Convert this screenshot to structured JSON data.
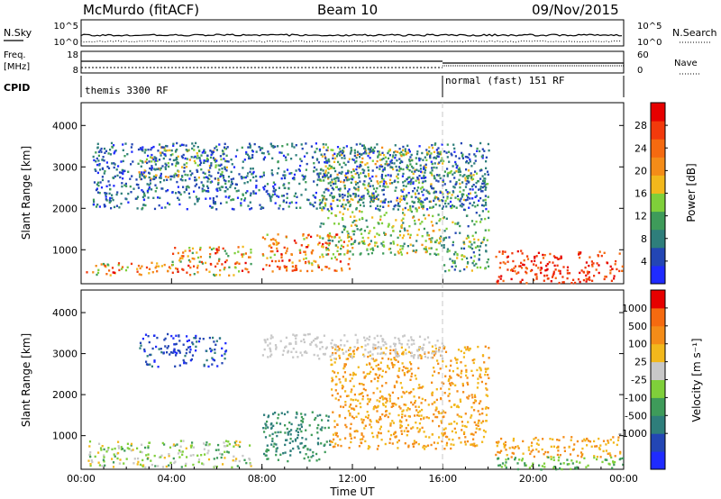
{
  "header": {
    "station": "McMurdo (fitACF)",
    "beam": "Beam 10",
    "date": "09/Nov/2015"
  },
  "top_panels": {
    "nsky_label": "N.Sky",
    "nsearch_label": "N.Search",
    "freq_label_1": "Freq.",
    "freq_label_2": "[MHz]",
    "nave_label": "Nave",
    "cpid_label": "CPID",
    "noise_ticks_left": [
      "10^5",
      "10^0"
    ],
    "noise_ticks_right": [
      "10^5",
      "10^0"
    ],
    "freq_ticks": [
      "18",
      "8"
    ],
    "nave_ticks": [
      "60",
      "0"
    ],
    "cpid_modes": [
      {
        "label": "themis 3300 RF",
        "start_hour": 0
      },
      {
        "label": "normal (fast) 151 RF",
        "start_hour": 16
      }
    ]
  },
  "chart_data": [
    {
      "type": "heatmap",
      "name": "power",
      "xlabel": "",
      "ylabel": "Slant Range [km]",
      "xlim": [
        0,
        24
      ],
      "ylim": [
        180,
        4550
      ],
      "yticks": [
        1000,
        2000,
        3000,
        4000
      ],
      "colorbar": {
        "label": "Power [dB]",
        "range": [
          0,
          32
        ],
        "ticks": [
          4,
          8,
          12,
          16,
          20,
          24,
          28
        ],
        "colors": [
          "#1f2bff",
          "#2346b4",
          "#2e7e7b",
          "#3e9b5a",
          "#7fcf3a",
          "#f2b81c",
          "#f48c18",
          "#f56a10",
          "#f23a0c",
          "#e60000"
        ]
      },
      "scatter_blobs": [
        {
          "t0": 0.2,
          "t1": 2.0,
          "r0": 380,
          "r1": 700,
          "level": [
            3,
            9
          ]
        },
        {
          "t0": 2.0,
          "t1": 4.0,
          "r0": 420,
          "r1": 720,
          "level": [
            4,
            8
          ]
        },
        {
          "t0": 4.0,
          "t1": 7.5,
          "r0": 400,
          "r1": 1100,
          "level": [
            3,
            9
          ]
        },
        {
          "t0": 2.5,
          "t1": 6.5,
          "r0": 2700,
          "r1": 3500,
          "level": [
            1,
            6
          ]
        },
        {
          "t0": 8.0,
          "t1": 12.0,
          "r0": 500,
          "r1": 1400,
          "level": [
            4,
            9
          ]
        },
        {
          "t0": 10.5,
          "t1": 16.0,
          "r0": 900,
          "r1": 3500,
          "level": [
            2,
            6
          ]
        },
        {
          "t0": 16.0,
          "t1": 18.0,
          "r0": 500,
          "r1": 3000,
          "level": [
            1,
            5
          ]
        },
        {
          "t0": 18.3,
          "t1": 24.0,
          "r0": 200,
          "r1": 1000,
          "level": [
            7,
            9
          ]
        },
        {
          "t0": 0.5,
          "t1": 18.0,
          "r0": 2000,
          "r1": 3600,
          "level": [
            0,
            3
          ]
        }
      ]
    },
    {
      "type": "heatmap",
      "name": "velocity",
      "xlabel": "Time UT",
      "ylabel": "Slant Range [km]",
      "xlim": [
        0,
        24
      ],
      "ylim": [
        180,
        4550
      ],
      "yticks": [
        1000,
        2000,
        3000,
        4000
      ],
      "xticks": [
        "00:00",
        "04:00",
        "08:00",
        "12:00",
        "16:00",
        "20:00",
        "00:00"
      ],
      "colorbar": {
        "label": "Velocity [m s⁻¹]",
        "ticks": [
          "1000",
          "500",
          "100",
          "25",
          "-25",
          "-100",
          "-500",
          "-1000"
        ],
        "colors": [
          "#1f2bff",
          "#2346b4",
          "#2e7e7b",
          "#3e9b5a",
          "#7fcf3a",
          "#c8c8c8",
          "#f2b81c",
          "#f48c18",
          "#f56a10",
          "#e60000"
        ]
      },
      "scatter_blobs": [
        {
          "t0": 0.2,
          "t1": 7.5,
          "r0": 250,
          "r1": 900,
          "level": [
            3,
            6
          ]
        },
        {
          "t0": 2.5,
          "t1": 6.5,
          "r0": 2700,
          "r1": 3500,
          "level": [
            0,
            2
          ]
        },
        {
          "t0": 8.0,
          "t1": 11.0,
          "r0": 400,
          "r1": 1600,
          "level": [
            2,
            3
          ]
        },
        {
          "t0": 11.0,
          "t1": 18.0,
          "r0": 700,
          "r1": 3200,
          "level": [
            6,
            7
          ]
        },
        {
          "t0": 18.3,
          "t1": 24.0,
          "r0": 500,
          "r1": 1000,
          "level": [
            6,
            7
          ]
        },
        {
          "t0": 18.3,
          "t1": 24.0,
          "r0": 200,
          "r1": 500,
          "level": [
            3,
            4
          ]
        },
        {
          "t0": 8.0,
          "t1": 16.0,
          "r0": 2900,
          "r1": 3500,
          "level": [
            5,
            5
          ]
        }
      ]
    }
  ]
}
